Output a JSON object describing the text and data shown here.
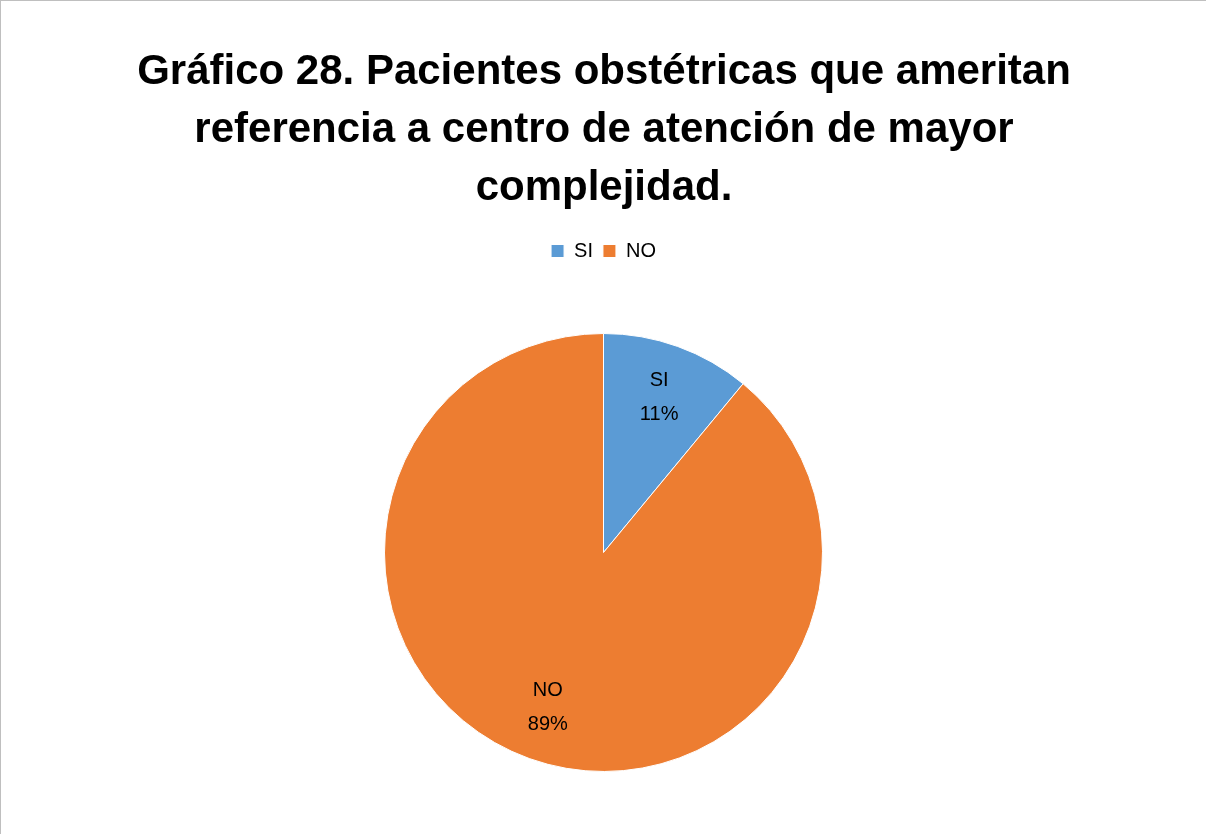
{
  "chart_data": {
    "type": "pie",
    "title": "Gráfico 28. Pacientes obstétricas que ameritan referencia a centro de atención de mayor complejidad.",
    "categories": [
      "SI",
      "NO"
    ],
    "values": [
      11,
      89
    ],
    "value_labels": [
      "11%",
      "89%"
    ],
    "colors": [
      "#5b9bd5",
      "#ed7d31"
    ],
    "legend": "top"
  }
}
